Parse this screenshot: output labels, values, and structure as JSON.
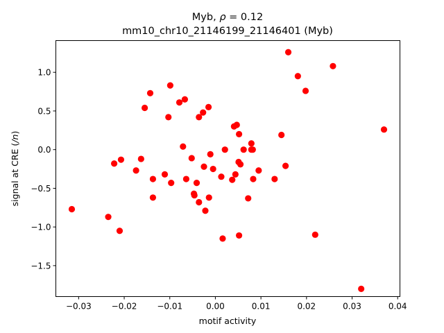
{
  "chart_data": {
    "type": "scatter",
    "title_line1": "Myb, ρ = 0.12",
    "title_line2": "mm10_chr10_21146199_21146401 (Myb)",
    "xlabel": "motif activity",
    "ylabel": "signal at CRE (/n)",
    "xlim": [
      -0.035,
      0.0405
    ],
    "ylim": [
      -1.9,
      1.41
    ],
    "xticks": [
      -0.03,
      -0.02,
      -0.01,
      0.0,
      0.01,
      0.02,
      0.03,
      0.04
    ],
    "xtick_labels": [
      "−0.03",
      "−0.02",
      "−0.01",
      "0.00",
      "0.01",
      "0.02",
      "0.03",
      "0.04"
    ],
    "yticks": [
      -1.5,
      -1.0,
      -0.5,
      0.0,
      0.5,
      1.0
    ],
    "ytick_labels": [
      "−1.5",
      "−1.0",
      "−0.5",
      "0.0",
      "0.5",
      "1.0"
    ],
    "marker_color": "#ff0000",
    "grid": false,
    "points": [
      [
        -0.0315,
        -0.77
      ],
      [
        -0.0235,
        -0.87
      ],
      [
        -0.0222,
        -0.18
      ],
      [
        -0.021,
        -1.05
      ],
      [
        -0.0207,
        -0.13
      ],
      [
        -0.0174,
        -0.27
      ],
      [
        -0.0163,
        -0.12
      ],
      [
        -0.0155,
        0.54
      ],
      [
        -0.0143,
        0.73
      ],
      [
        -0.0137,
        -0.38
      ],
      [
        -0.0137,
        -0.62
      ],
      [
        -0.0111,
        -0.32
      ],
      [
        -0.0103,
        0.42
      ],
      [
        -0.0099,
        0.83
      ],
      [
        -0.0097,
        -0.43
      ],
      [
        -0.0079,
        0.61
      ],
      [
        -0.0071,
        0.04
      ],
      [
        -0.0067,
        0.65
      ],
      [
        -0.0064,
        -0.38
      ],
      [
        -0.0052,
        -0.11
      ],
      [
        -0.0047,
        -0.57
      ],
      [
        -0.0046,
        -0.59
      ],
      [
        -0.0041,
        -0.43
      ],
      [
        -0.0036,
        0.42
      ],
      [
        -0.0036,
        -0.68
      ],
      [
        -0.0027,
        0.48
      ],
      [
        -0.0025,
        -0.22
      ],
      [
        -0.0022,
        -0.79
      ],
      [
        -0.0015,
        0.55
      ],
      [
        -0.0014,
        -0.62
      ],
      [
        -0.0011,
        -0.06
      ],
      [
        -0.0005,
        -0.25
      ],
      [
        0.0013,
        -0.35
      ],
      [
        0.0016,
        -1.15
      ],
      [
        0.0021,
        0.0
      ],
      [
        0.0037,
        -0.39
      ],
      [
        0.0041,
        0.3
      ],
      [
        0.0044,
        -0.32
      ],
      [
        0.0047,
        0.32
      ],
      [
        0.0051,
        -0.16
      ],
      [
        0.0052,
        0.2
      ],
      [
        0.0052,
        -1.11
      ],
      [
        0.0055,
        -0.19
      ],
      [
        0.0062,
        0.0
      ],
      [
        0.0072,
        -0.63
      ],
      [
        0.0079,
        0.08
      ],
      [
        0.0079,
        0.0
      ],
      [
        0.0082,
        0.0
      ],
      [
        0.0083,
        -0.38
      ],
      [
        0.0095,
        -0.27
      ],
      [
        0.013,
        -0.38
      ],
      [
        0.0145,
        0.19
      ],
      [
        0.0154,
        -0.21
      ],
      [
        0.016,
        1.26
      ],
      [
        0.0181,
        0.95
      ],
      [
        0.0198,
        0.76
      ],
      [
        0.0219,
        -1.1
      ],
      [
        0.0258,
        1.08
      ],
      [
        0.032,
        -1.8
      ],
      [
        0.037,
        0.26
      ]
    ]
  }
}
